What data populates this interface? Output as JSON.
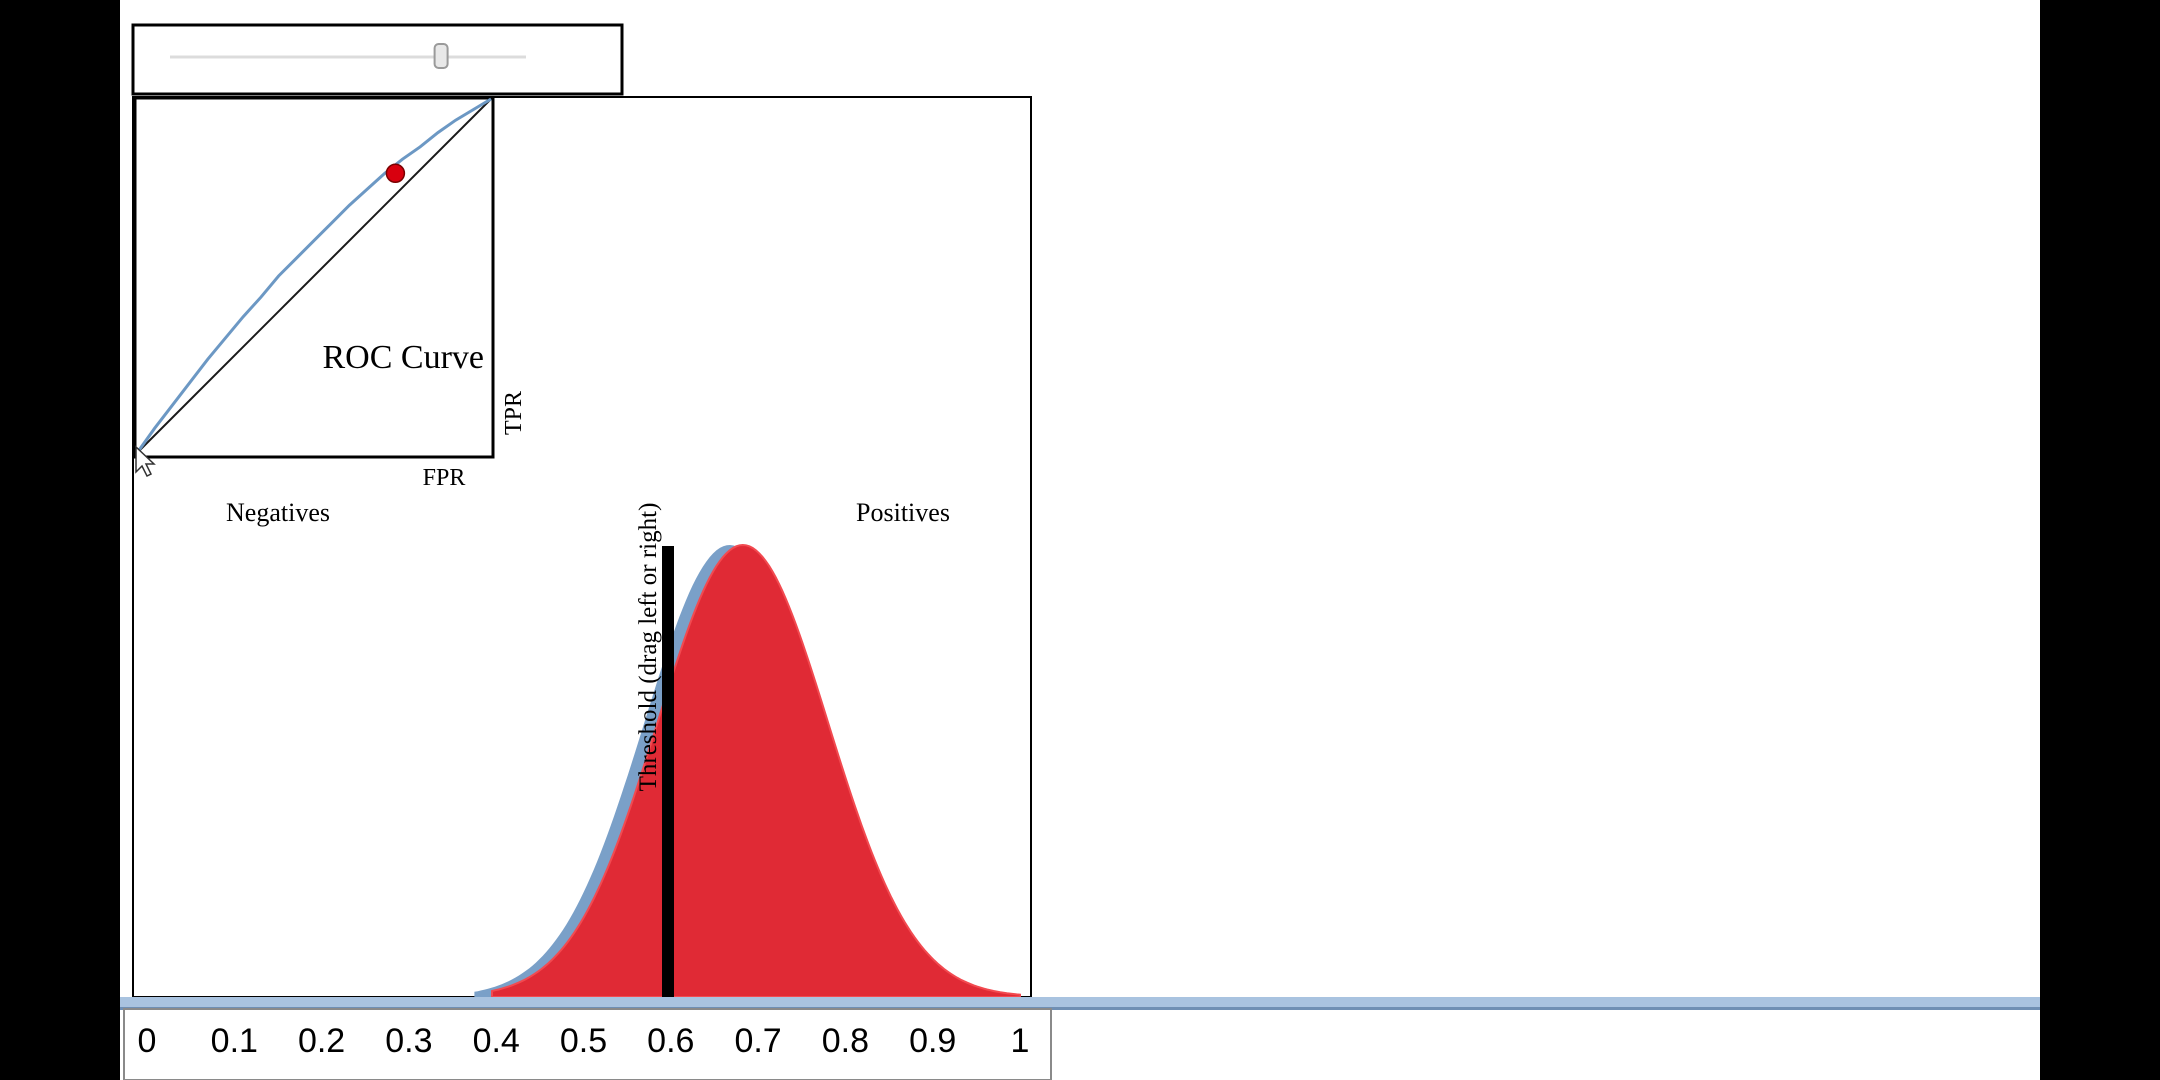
{
  "colors": {
    "page_background": "#ffffff",
    "side_bars": "#000000",
    "negatives_fill": "#7aa0c8",
    "positives_fill": "#e02a35",
    "positives_edge": "#f24a50",
    "threshold_line": "#000000",
    "roc_curve": "#6c98c4",
    "roc_point": "#d8000f",
    "scroll_bar": "#a9c3e0"
  },
  "slider": {
    "value_fraction": 0.76
  },
  "roc": {
    "title": "ROC Curve",
    "xlabel": "FPR",
    "ylabel": "TPR"
  },
  "distribution": {
    "negatives_label": "Negatives",
    "positives_label": "Positives",
    "threshold_label": "Threshold (drag left or right)"
  },
  "chart_data": [
    {
      "type": "line",
      "title": "ROC Curve",
      "xlabel": "FPR",
      "ylabel": "TPR",
      "xlim": [
        0,
        1
      ],
      "ylim": [
        0,
        1
      ],
      "series": [
        {
          "x": [
            0,
            0.05,
            0.1,
            0.15,
            0.2,
            0.25,
            0.3,
            0.35,
            0.4,
            0.45,
            0.5,
            0.55,
            0.6,
            0.65,
            0.7,
            0.75,
            0.8,
            0.85,
            0.9,
            0.95,
            1
          ],
          "y": [
            0,
            0.07,
            0.135,
            0.2,
            0.265,
            0.325,
            0.385,
            0.44,
            0.5,
            0.55,
            0.6,
            0.65,
            0.7,
            0.745,
            0.79,
            0.83,
            0.865,
            0.905,
            0.94,
            0.97,
            1
          ]
        },
        {
          "x": [
            0,
            1
          ],
          "y": [
            0,
            1
          ]
        }
      ],
      "point": {
        "x": 0.73,
        "y": 0.79
      }
    },
    {
      "type": "area",
      "xlim": [
        0,
        1
      ],
      "xticks": [
        "0",
        "0.1",
        "0.2",
        "0.3",
        "0.4",
        "0.5",
        "0.6",
        "0.7",
        "0.8",
        "0.9",
        "1"
      ],
      "series": [
        {
          "center": 0.67,
          "sd": 0.097,
          "min": 0.38,
          "max": 1.0
        },
        {
          "center": 0.685,
          "sd": 0.097,
          "min": 0.4,
          "max": 1.0
        }
      ],
      "threshold": 0.6
    }
  ]
}
